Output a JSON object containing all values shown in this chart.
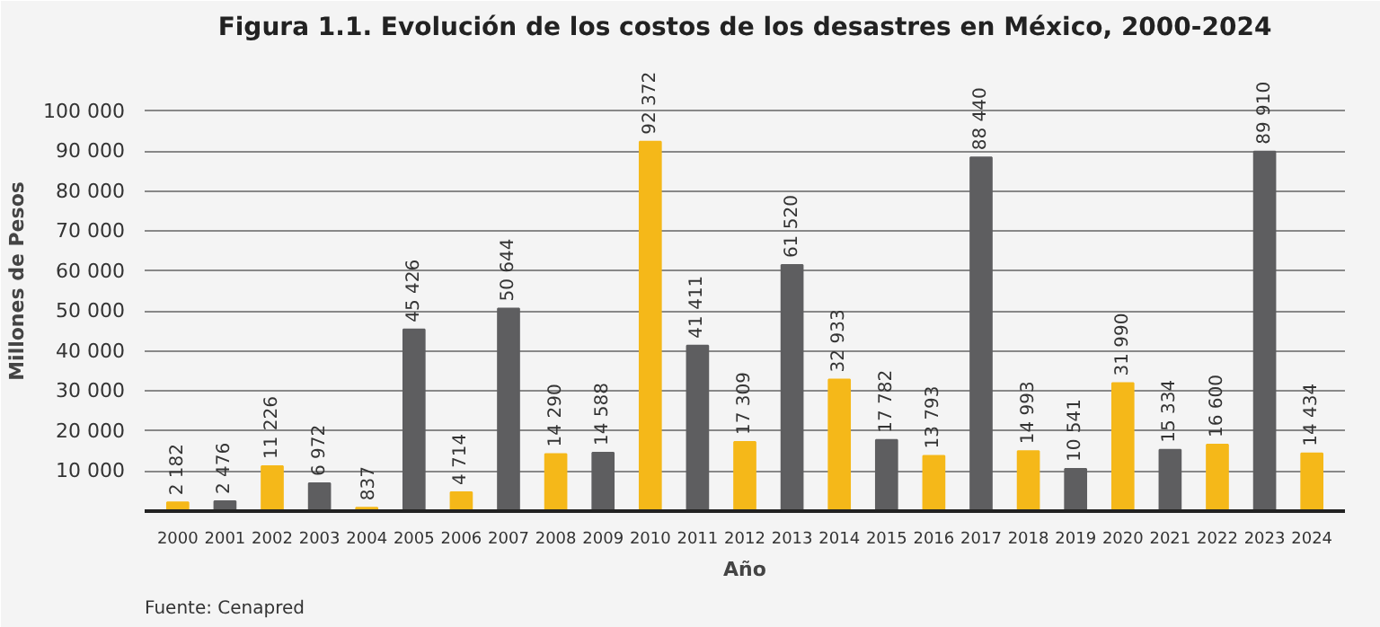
{
  "chart_data": {
    "type": "bar",
    "title": "Figura 1.1. Evolución de los costos de los desastres en México, 2000-2024",
    "xlabel": "Año",
    "ylabel": "Millones de Pesos",
    "categories": [
      "2000",
      "2001",
      "2002",
      "2003",
      "2004",
      "2005",
      "2006",
      "2007",
      "2008",
      "2009",
      "2010",
      "2011",
      "2012",
      "2013",
      "2014",
      "2015",
      "2016",
      "2017",
      "2018",
      "2019",
      "2020",
      "2021",
      "2022",
      "2023",
      "2024"
    ],
    "values": [
      2182,
      2476,
      11226,
      6972,
      837,
      45426,
      4714,
      50644,
      14290,
      14588,
      92372,
      41411,
      17309,
      61520,
      32933,
      17782,
      13793,
      88440,
      14993,
      10541,
      31990,
      15334,
      16600,
      89910,
      14434
    ],
    "colors": [
      "#f5b819",
      "#5e5e60",
      "#f5b819",
      "#5e5e60",
      "#f5b819",
      "#5e5e60",
      "#f5b819",
      "#5e5e60",
      "#f5b819",
      "#5e5e60",
      "#f5b819",
      "#5e5e60",
      "#f5b819",
      "#5e5e60",
      "#f5b819",
      "#5e5e60",
      "#f5b819",
      "#5e5e60",
      "#f5b819",
      "#5e5e60",
      "#f5b819",
      "#5e5e60",
      "#f5b819",
      "#5e5e60",
      "#f5b819"
    ],
    "value_labels": [
      "2 182",
      "2 476",
      "11 226",
      "6 972",
      "837",
      "45 426",
      "4 714",
      "50 644",
      "14 290",
      "14 588",
      "92 372",
      "41 411",
      "17 309",
      "61 520",
      "32 933",
      "17 782",
      "13 793",
      "88 440",
      "14 993",
      "10 541",
      "31 990",
      "15 334",
      "16 600",
      "89 910",
      "14 434"
    ],
    "ylim": [
      0,
      115000
    ],
    "yticks": [
      {
        "value": 10000,
        "label": "10 000"
      },
      {
        "value": 20000,
        "label": "20 000"
      },
      {
        "value": 30000,
        "label": "30 000"
      },
      {
        "value": 40000,
        "label": "40 000"
      },
      {
        "value": 50000,
        "label": "50 000"
      },
      {
        "value": 60000,
        "label": "60 000"
      },
      {
        "value": 70000,
        "label": "70 000"
      },
      {
        "value": 80000,
        "label": "80 000"
      },
      {
        "value": 90000,
        "label": "90 000"
      },
      {
        "value": 100000,
        "label": "100 000"
      }
    ],
    "grid": "y",
    "annotations": [
      "Fuente: Cenapred"
    ]
  }
}
